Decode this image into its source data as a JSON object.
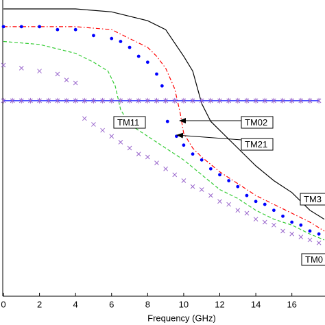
{
  "chart_data": {
    "type": "line",
    "x_label": "Frequency (GHz)",
    "xlim": [
      0,
      17.8
    ],
    "ylim": [
      0,
      1
    ],
    "xticks": [
      0,
      2,
      4,
      6,
      8,
      10,
      12,
      14,
      16
    ],
    "series": [
      {
        "color": "#000000",
        "style": "solid",
        "x": [
          0,
          4,
          6,
          8,
          9,
          10,
          10.5,
          11,
          11.5,
          12,
          13,
          14,
          15,
          16,
          17,
          17.8
        ],
        "values": [
          0.97,
          0.97,
          0.96,
          0.93,
          0.9,
          0.81,
          0.76,
          0.65,
          0.59,
          0.56,
          0.5,
          0.44,
          0.39,
          0.35,
          0.29,
          0.26
        ]
      },
      {
        "color": "#ff0000",
        "style": "dashdot",
        "x": [
          0,
          4,
          6,
          7,
          8,
          8.5,
          9,
          9.5,
          9.8,
          10,
          10.5,
          11,
          12,
          13,
          14,
          15,
          16,
          17,
          17.8
        ],
        "values": [
          0.91,
          0.91,
          0.9,
          0.87,
          0.84,
          0.81,
          0.77,
          0.7,
          0.62,
          0.55,
          0.5,
          0.47,
          0.42,
          0.38,
          0.34,
          0.31,
          0.28,
          0.25,
          0.22
        ]
      },
      {
        "color": "#33cc33",
        "style": "dashed",
        "x": [
          0,
          2,
          4,
          5,
          5.8,
          6.2,
          6.5,
          7,
          8,
          9,
          10,
          11,
          12,
          13,
          14,
          15,
          16,
          17,
          17.8
        ],
        "values": [
          0.86,
          0.85,
          0.82,
          0.79,
          0.76,
          0.71,
          0.63,
          0.58,
          0.54,
          0.5,
          0.46,
          0.41,
          0.36,
          0.33,
          0.29,
          0.26,
          0.24,
          0.21,
          0.19
        ]
      },
      {
        "color": "#0000ff",
        "style": "dots",
        "x": [
          0,
          1,
          2,
          3,
          4,
          5,
          6,
          6.5,
          7,
          7.5,
          8,
          8.5,
          8.8,
          9.1,
          9.6,
          10,
          10.5,
          11,
          11.5,
          12,
          12.5,
          13,
          13.5,
          14,
          14.5,
          15,
          15.5,
          16,
          16.5,
          17,
          17.5
        ],
        "values": [
          0.91,
          0.91,
          0.91,
          0.9,
          0.9,
          0.88,
          0.87,
          0.86,
          0.84,
          0.81,
          0.79,
          0.75,
          0.71,
          0.59,
          0.54,
          0.51,
          0.48,
          0.46,
          0.43,
          0.41,
          0.39,
          0.37,
          0.34,
          0.32,
          0.31,
          0.29,
          0.27,
          0.25,
          0.24,
          0.22,
          0.21
        ]
      },
      {
        "color": "#9966cc",
        "style": "cross",
        "x": [
          0,
          1,
          2,
          3,
          3.5,
          4,
          4.5,
          5,
          5.5,
          6,
          6.5,
          7,
          7.5,
          8,
          8.5,
          9,
          9.5,
          10,
          10.5,
          11,
          11.5,
          12,
          12.5,
          13,
          13.5,
          14,
          14.5,
          15,
          15.5,
          16,
          16.5,
          17,
          17.5
        ],
        "values": [
          0.78,
          0.77,
          0.76,
          0.75,
          0.73,
          0.72,
          0.6,
          0.58,
          0.56,
          0.54,
          0.52,
          0.5,
          0.48,
          0.47,
          0.45,
          0.43,
          0.41,
          0.39,
          0.37,
          0.36,
          0.34,
          0.32,
          0.31,
          0.29,
          0.28,
          0.26,
          0.25,
          0.24,
          0.22,
          0.21,
          0.2,
          0.19,
          0.18
        ]
      },
      {
        "color": "#3333ff",
        "style": "line-star",
        "x": [
          0,
          0.5,
          1,
          1.5,
          2,
          2.5,
          3,
          3.5,
          4,
          4.5,
          5,
          5.5,
          6,
          6.5,
          7,
          7.5,
          8,
          8.5,
          9,
          9.5,
          10,
          10.5,
          11,
          11.5,
          12,
          12.5,
          13,
          13.5,
          14,
          14.5,
          15,
          15.5,
          16,
          16.5,
          17,
          17.5
        ],
        "values": [
          0.66,
          0.66,
          0.66,
          0.66,
          0.66,
          0.66,
          0.66,
          0.66,
          0.66,
          0.66,
          0.66,
          0.66,
          0.66,
          0.66,
          0.66,
          0.66,
          0.66,
          0.66,
          0.66,
          0.66,
          0.66,
          0.66,
          0.66,
          0.66,
          0.66,
          0.66,
          0.66,
          0.66,
          0.66,
          0.66,
          0.66,
          0.66,
          0.66,
          0.66,
          0.66,
          0.66
        ]
      }
    ],
    "annotations": [
      "TM11",
      "TM02",
      "TM21",
      "TM3",
      "TM0"
    ]
  }
}
